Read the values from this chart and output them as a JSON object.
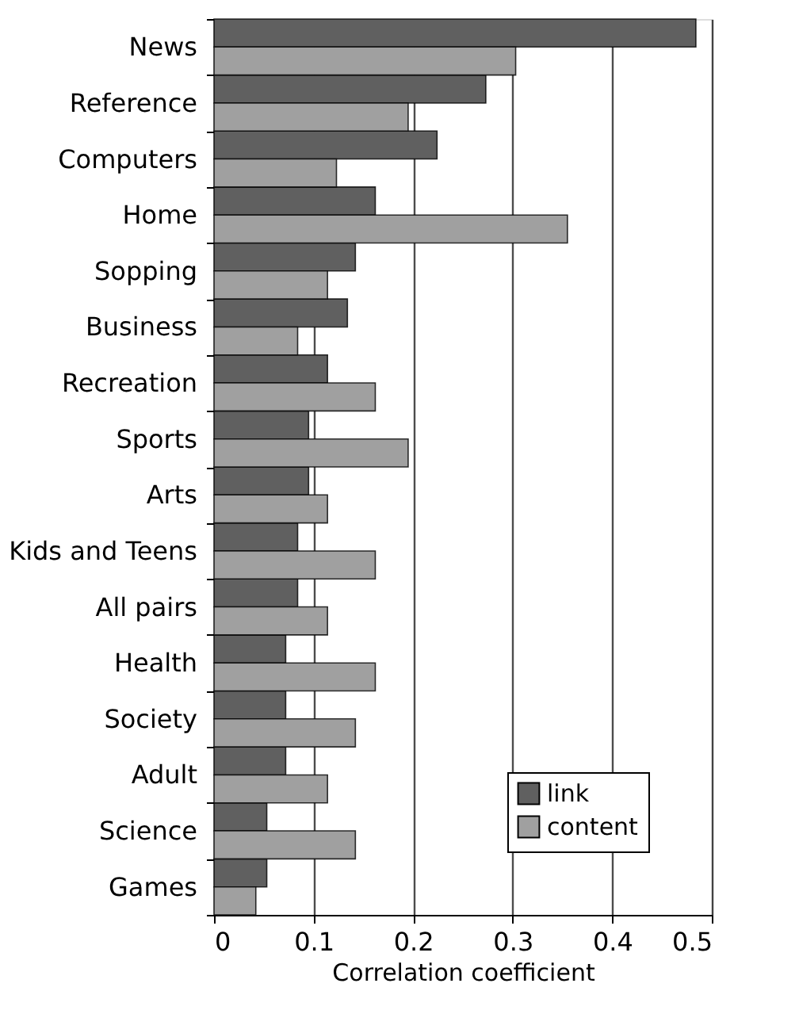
{
  "chart_data": {
    "type": "bar",
    "orientation": "horizontal",
    "xlabel": "Correlation coefficient",
    "categories": [
      "News",
      "Reference",
      "Computers",
      "Home",
      "Sopping",
      "Business",
      "Recreation",
      "Sports",
      "Arts",
      "Kids and Teens",
      "All pairs",
      "Health",
      "Society",
      "Adult",
      "Science",
      "Games"
    ],
    "series": [
      {
        "name": "link",
        "color": "#606060",
        "values": [
          0.484,
          0.273,
          0.224,
          0.162,
          0.142,
          0.134,
          0.114,
          0.095,
          0.095,
          0.084,
          0.084,
          0.072,
          0.072,
          0.072,
          0.053,
          0.053
        ]
      },
      {
        "name": "content",
        "color": "#a0a0a0",
        "values": [
          0.303,
          0.195,
          0.123,
          0.355,
          0.114,
          0.084,
          0.162,
          0.195,
          0.114,
          0.162,
          0.114,
          0.162,
          0.142,
          0.114,
          0.142,
          0.042
        ]
      }
    ],
    "xlim": [
      0,
      0.5
    ],
    "xticks": [
      0,
      0.1,
      0.2,
      0.3,
      0.4,
      0.5
    ],
    "grid": "x",
    "legend": "bottom right"
  }
}
